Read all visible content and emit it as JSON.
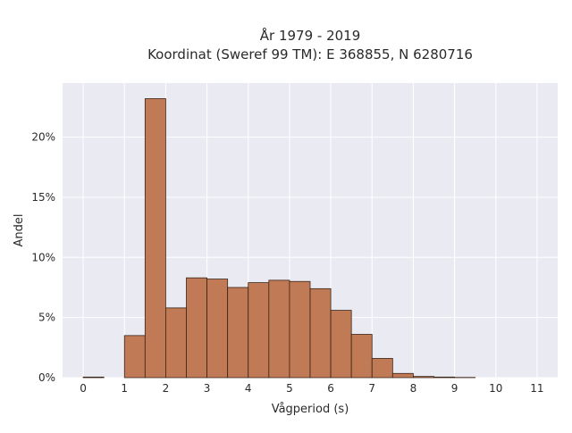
{
  "chart_data": {
    "type": "bar",
    "title_line1": "År 1979 - 2019",
    "title_line2": "Koordinat (Sweref 99 TM): E 368855, N 6280716",
    "xlabel": "Vågperiod (s)",
    "ylabel": "Andel",
    "xlim": [
      -0.5,
      11.5
    ],
    "ylim": [
      0,
      24.5
    ],
    "x_ticks": [
      0,
      1,
      2,
      3,
      4,
      5,
      6,
      7,
      8,
      9,
      10,
      11
    ],
    "x_tick_labels": [
      "0",
      "1",
      "2",
      "3",
      "4",
      "5",
      "6",
      "7",
      "8",
      "9",
      "10",
      "11"
    ],
    "y_ticks": [
      0,
      5,
      10,
      15,
      20
    ],
    "y_tick_labels": [
      "0%",
      "5%",
      "10%",
      "15%",
      "20%"
    ],
    "bin_width": 0.5,
    "bins": [
      {
        "start": 0.0,
        "value": 0.05
      },
      {
        "start": 0.5,
        "value": 0.0
      },
      {
        "start": 1.0,
        "value": 3.5
      },
      {
        "start": 1.5,
        "value": 23.2
      },
      {
        "start": 2.0,
        "value": 5.8
      },
      {
        "start": 2.5,
        "value": 8.3
      },
      {
        "start": 3.0,
        "value": 8.2
      },
      {
        "start": 3.5,
        "value": 7.5
      },
      {
        "start": 4.0,
        "value": 7.9
      },
      {
        "start": 4.5,
        "value": 8.1
      },
      {
        "start": 5.0,
        "value": 8.0
      },
      {
        "start": 5.5,
        "value": 7.4
      },
      {
        "start": 6.0,
        "value": 5.6
      },
      {
        "start": 6.5,
        "value": 3.6
      },
      {
        "start": 7.0,
        "value": 1.6
      },
      {
        "start": 7.5,
        "value": 0.35
      },
      {
        "start": 8.0,
        "value": 0.1
      },
      {
        "start": 8.5,
        "value": 0.05
      },
      {
        "start": 9.0,
        "value": 0.02
      }
    ],
    "grid": true,
    "bar_color": "#c07a55",
    "bar_edge_color": "#3a2418",
    "plot_background": "#eaeaf2",
    "grid_color": "#ffffff"
  }
}
